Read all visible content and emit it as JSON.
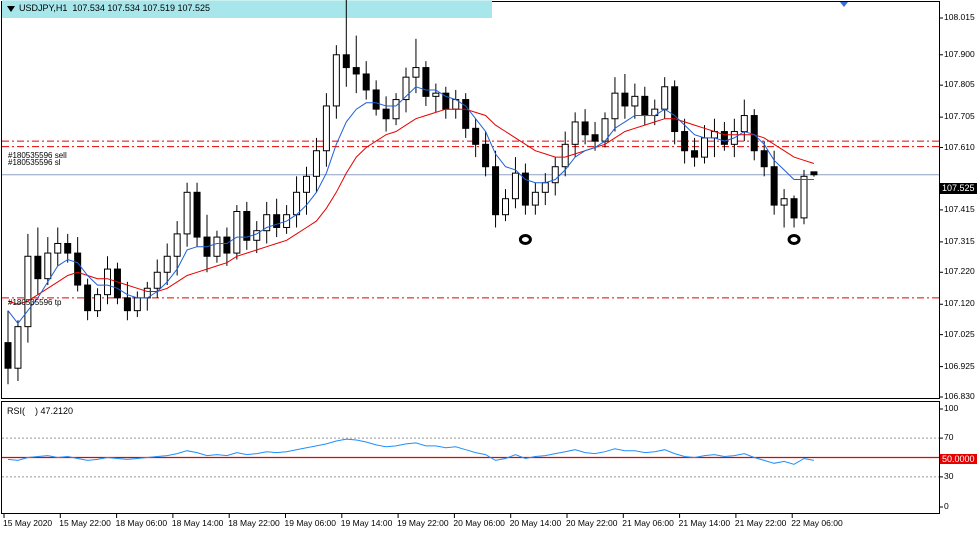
{
  "chart_data": {
    "type": "candlestick",
    "symbol": "USDJPY,H1",
    "ohlc_header": "107.534 107.534 107.519 107.525",
    "current_price": "107.525",
    "ylim": [
      106.83,
      108.09
    ],
    "y_ticks": [
      "108.015",
      "107.900",
      "107.805",
      "107.705",
      "107.610",
      "107.415",
      "107.315",
      "107.220",
      "107.120",
      "107.025",
      "106.925",
      "106.830"
    ],
    "x_ticks": [
      "15 May 2020",
      "15 May 22:00",
      "18 May 06:00",
      "18 May 14:00",
      "18 May 22:00",
      "19 May 06:00",
      "19 May 14:00",
      "19 May 22:00",
      "20 May 06:00",
      "20 May 14:00",
      "20 May 22:00",
      "21 May 06:00",
      "21 May 14:00",
      "21 May 22:00",
      "22 May 06:00"
    ],
    "order_labels": {
      "sell": "#180535596 sell",
      "sl": "#180535596 sl",
      "tp": "#180535596 tp"
    },
    "order_levels": {
      "sell": 107.63,
      "sl": 107.613,
      "tp": 107.14
    },
    "supply_zone": [
      108.07,
      108.015
    ],
    "colors": {
      "ma_fast": "#1e5fd6",
      "ma_slow": "#e60000",
      "rsi": "#1e90ff",
      "level": "#e60000",
      "zone": "#a7e6ea",
      "price_line": "#8da0c4"
    },
    "rsi": {
      "label": "RSI(",
      "period_hidden": ")",
      "value": "47.2120",
      "level_value": "50.0000",
      "ylim": [
        0,
        100
      ],
      "y_ticks": [
        "100",
        "70",
        "50",
        "30",
        "0"
      ],
      "levels": [
        70,
        50,
        30
      ]
    },
    "candles": [
      {
        "o": 107.0,
        "h": 107.1,
        "l": 106.87,
        "c": 106.92
      },
      {
        "o": 106.92,
        "h": 107.07,
        "l": 106.88,
        "c": 107.05
      },
      {
        "o": 107.05,
        "h": 107.34,
        "l": 107.0,
        "c": 107.27
      },
      {
        "o": 107.27,
        "h": 107.36,
        "l": 107.15,
        "c": 107.2
      },
      {
        "o": 107.2,
        "h": 107.33,
        "l": 107.18,
        "c": 107.28
      },
      {
        "o": 107.28,
        "h": 107.36,
        "l": 107.24,
        "c": 107.31
      },
      {
        "o": 107.31,
        "h": 107.34,
        "l": 107.25,
        "c": 107.28
      },
      {
        "o": 107.28,
        "h": 107.33,
        "l": 107.16,
        "c": 107.18
      },
      {
        "o": 107.18,
        "h": 107.2,
        "l": 107.07,
        "c": 107.1
      },
      {
        "o": 107.1,
        "h": 107.17,
        "l": 107.08,
        "c": 107.15
      },
      {
        "o": 107.15,
        "h": 107.27,
        "l": 107.12,
        "c": 107.23
      },
      {
        "o": 107.23,
        "h": 107.25,
        "l": 107.12,
        "c": 107.14
      },
      {
        "o": 107.14,
        "h": 107.19,
        "l": 107.07,
        "c": 107.1
      },
      {
        "o": 107.1,
        "h": 107.16,
        "l": 107.08,
        "c": 107.14
      },
      {
        "o": 107.14,
        "h": 107.19,
        "l": 107.1,
        "c": 107.17
      },
      {
        "o": 107.17,
        "h": 107.26,
        "l": 107.14,
        "c": 107.22
      },
      {
        "o": 107.22,
        "h": 107.31,
        "l": 107.18,
        "c": 107.27
      },
      {
        "o": 107.27,
        "h": 107.38,
        "l": 107.21,
        "c": 107.34
      },
      {
        "o": 107.34,
        "h": 107.5,
        "l": 107.3,
        "c": 107.47
      },
      {
        "o": 107.47,
        "h": 107.5,
        "l": 107.3,
        "c": 107.33
      },
      {
        "o": 107.33,
        "h": 107.4,
        "l": 107.22,
        "c": 107.27
      },
      {
        "o": 107.27,
        "h": 107.35,
        "l": 107.25,
        "c": 107.33
      },
      {
        "o": 107.33,
        "h": 107.36,
        "l": 107.24,
        "c": 107.28
      },
      {
        "o": 107.28,
        "h": 107.43,
        "l": 107.26,
        "c": 107.41
      },
      {
        "o": 107.41,
        "h": 107.44,
        "l": 107.29,
        "c": 107.32
      },
      {
        "o": 107.32,
        "h": 107.38,
        "l": 107.28,
        "c": 107.35
      },
      {
        "o": 107.35,
        "h": 107.44,
        "l": 107.31,
        "c": 107.4
      },
      {
        "o": 107.4,
        "h": 107.45,
        "l": 107.33,
        "c": 107.36
      },
      {
        "o": 107.36,
        "h": 107.43,
        "l": 107.34,
        "c": 107.4
      },
      {
        "o": 107.4,
        "h": 107.52,
        "l": 107.36,
        "c": 107.47
      },
      {
        "o": 107.47,
        "h": 107.55,
        "l": 107.4,
        "c": 107.52
      },
      {
        "o": 107.52,
        "h": 107.64,
        "l": 107.47,
        "c": 107.6
      },
      {
        "o": 107.6,
        "h": 107.78,
        "l": 107.55,
        "c": 107.74
      },
      {
        "o": 107.74,
        "h": 107.93,
        "l": 107.7,
        "c": 107.9
      },
      {
        "o": 107.9,
        "h": 108.08,
        "l": 107.8,
        "c": 107.86
      },
      {
        "o": 107.86,
        "h": 107.96,
        "l": 107.78,
        "c": 107.84
      },
      {
        "o": 107.84,
        "h": 107.88,
        "l": 107.76,
        "c": 107.79
      },
      {
        "o": 107.79,
        "h": 107.82,
        "l": 107.71,
        "c": 107.73
      },
      {
        "o": 107.73,
        "h": 107.77,
        "l": 107.66,
        "c": 107.7
      },
      {
        "o": 107.7,
        "h": 107.78,
        "l": 107.68,
        "c": 107.76
      },
      {
        "o": 107.76,
        "h": 107.86,
        "l": 107.72,
        "c": 107.83
      },
      {
        "o": 107.83,
        "h": 107.95,
        "l": 107.78,
        "c": 107.86
      },
      {
        "o": 107.86,
        "h": 107.88,
        "l": 107.74,
        "c": 107.77
      },
      {
        "o": 107.77,
        "h": 107.81,
        "l": 107.72,
        "c": 107.78
      },
      {
        "o": 107.78,
        "h": 107.8,
        "l": 107.7,
        "c": 107.73
      },
      {
        "o": 107.73,
        "h": 107.79,
        "l": 107.7,
        "c": 107.76
      },
      {
        "o": 107.76,
        "h": 107.78,
        "l": 107.64,
        "c": 107.67
      },
      {
        "o": 107.67,
        "h": 107.7,
        "l": 107.58,
        "c": 107.62
      },
      {
        "o": 107.62,
        "h": 107.66,
        "l": 107.52,
        "c": 107.55
      },
      {
        "o": 107.55,
        "h": 107.6,
        "l": 107.36,
        "c": 107.4
      },
      {
        "o": 107.4,
        "h": 107.48,
        "l": 107.38,
        "c": 107.45
      },
      {
        "o": 107.45,
        "h": 107.58,
        "l": 107.42,
        "c": 107.53
      },
      {
        "o": 107.53,
        "h": 107.56,
        "l": 107.4,
        "c": 107.43
      },
      {
        "o": 107.43,
        "h": 107.5,
        "l": 107.4,
        "c": 107.47
      },
      {
        "o": 107.47,
        "h": 107.53,
        "l": 107.43,
        "c": 107.5
      },
      {
        "o": 107.5,
        "h": 107.58,
        "l": 107.46,
        "c": 107.55
      },
      {
        "o": 107.55,
        "h": 107.66,
        "l": 107.52,
        "c": 107.62
      },
      {
        "o": 107.62,
        "h": 107.72,
        "l": 107.58,
        "c": 107.69
      },
      {
        "o": 107.69,
        "h": 107.73,
        "l": 107.62,
        "c": 107.65
      },
      {
        "o": 107.65,
        "h": 107.69,
        "l": 107.6,
        "c": 107.63
      },
      {
        "o": 107.63,
        "h": 107.72,
        "l": 107.61,
        "c": 107.7
      },
      {
        "o": 107.7,
        "h": 107.83,
        "l": 107.66,
        "c": 107.78
      },
      {
        "o": 107.78,
        "h": 107.84,
        "l": 107.7,
        "c": 107.74
      },
      {
        "o": 107.74,
        "h": 107.81,
        "l": 107.7,
        "c": 107.77
      },
      {
        "o": 107.77,
        "h": 107.8,
        "l": 107.68,
        "c": 107.71
      },
      {
        "o": 107.71,
        "h": 107.76,
        "l": 107.68,
        "c": 107.73
      },
      {
        "o": 107.73,
        "h": 107.83,
        "l": 107.7,
        "c": 107.8
      },
      {
        "o": 107.8,
        "h": 107.82,
        "l": 107.62,
        "c": 107.66
      },
      {
        "o": 107.66,
        "h": 107.7,
        "l": 107.56,
        "c": 107.6
      },
      {
        "o": 107.6,
        "h": 107.64,
        "l": 107.55,
        "c": 107.58
      },
      {
        "o": 107.58,
        "h": 107.68,
        "l": 107.56,
        "c": 107.64
      },
      {
        "o": 107.64,
        "h": 107.7,
        "l": 107.58,
        "c": 107.66
      },
      {
        "o": 107.66,
        "h": 107.69,
        "l": 107.6,
        "c": 107.62
      },
      {
        "o": 107.62,
        "h": 107.7,
        "l": 107.58,
        "c": 107.66
      },
      {
        "o": 107.66,
        "h": 107.76,
        "l": 107.63,
        "c": 107.71
      },
      {
        "o": 107.71,
        "h": 107.73,
        "l": 107.57,
        "c": 107.6
      },
      {
        "o": 107.6,
        "h": 107.63,
        "l": 107.52,
        "c": 107.55
      },
      {
        "o": 107.55,
        "h": 107.6,
        "l": 107.4,
        "c": 107.43
      },
      {
        "o": 107.43,
        "h": 107.48,
        "l": 107.36,
        "c": 107.45
      },
      {
        "o": 107.45,
        "h": 107.46,
        "l": 107.36,
        "c": 107.39
      },
      {
        "o": 107.39,
        "h": 107.54,
        "l": 107.37,
        "c": 107.52
      },
      {
        "o": 107.534,
        "h": 107.534,
        "l": 107.519,
        "c": 107.525
      }
    ],
    "ma_fast": [
      107.1,
      107.06,
      107.1,
      107.14,
      107.19,
      107.24,
      107.26,
      107.25,
      107.21,
      107.18,
      107.18,
      107.17,
      107.15,
      107.14,
      107.14,
      107.16,
      107.19,
      107.23,
      107.29,
      107.3,
      107.3,
      107.31,
      107.31,
      107.33,
      107.33,
      107.34,
      107.36,
      107.37,
      107.38,
      107.4,
      107.43,
      107.47,
      107.53,
      107.62,
      107.69,
      107.73,
      107.75,
      107.75,
      107.74,
      107.74,
      107.77,
      107.8,
      107.79,
      107.79,
      107.77,
      107.76,
      107.74,
      107.7,
      107.66,
      107.59,
      107.55,
      107.54,
      107.51,
      107.5,
      107.5,
      107.51,
      107.54,
      107.58,
      107.6,
      107.61,
      107.63,
      107.67,
      107.69,
      107.71,
      107.71,
      107.71,
      107.73,
      107.71,
      107.68,
      107.65,
      107.64,
      107.64,
      107.63,
      107.64,
      107.66,
      107.65,
      107.62,
      107.57,
      107.54,
      107.51,
      107.51,
      107.51
    ],
    "ma_slow": [
      107.13,
      107.12,
      107.13,
      107.15,
      107.17,
      107.19,
      107.21,
      107.22,
      107.21,
      107.2,
      107.2,
      107.19,
      107.18,
      107.17,
      107.16,
      107.16,
      107.17,
      107.19,
      107.21,
      107.22,
      107.23,
      107.24,
      107.25,
      107.27,
      107.28,
      107.29,
      107.3,
      107.31,
      107.32,
      107.34,
      107.36,
      107.38,
      107.42,
      107.47,
      107.53,
      107.58,
      107.61,
      107.63,
      107.65,
      107.66,
      107.68,
      107.7,
      107.71,
      107.72,
      107.73,
      107.73,
      107.73,
      107.72,
      107.71,
      107.68,
      107.66,
      107.64,
      107.62,
      107.6,
      107.59,
      107.58,
      107.58,
      107.59,
      107.6,
      107.61,
      107.62,
      107.64,
      107.66,
      107.67,
      107.68,
      107.69,
      107.7,
      107.7,
      107.69,
      107.68,
      107.67,
      107.66,
      107.65,
      107.65,
      107.65,
      107.65,
      107.64,
      107.62,
      107.6,
      107.58,
      107.57,
      107.56
    ],
    "rsi_values": [
      48,
      47,
      50,
      51,
      52,
      50,
      51,
      49,
      47,
      48,
      50,
      49,
      48,
      49,
      50,
      51,
      52,
      54,
      57,
      55,
      52,
      53,
      52,
      55,
      53,
      54,
      56,
      55,
      56,
      58,
      60,
      62,
      64,
      67,
      69,
      68,
      66,
      63,
      61,
      62,
      64,
      65,
      62,
      62,
      60,
      61,
      58,
      55,
      53,
      47,
      49,
      53,
      49,
      51,
      52,
      54,
      56,
      58,
      55,
      54,
      56,
      59,
      57,
      57,
      55,
      56,
      58,
      54,
      51,
      50,
      52,
      53,
      51,
      52,
      54,
      50,
      47,
      44,
      46,
      43,
      49,
      47
    ]
  }
}
